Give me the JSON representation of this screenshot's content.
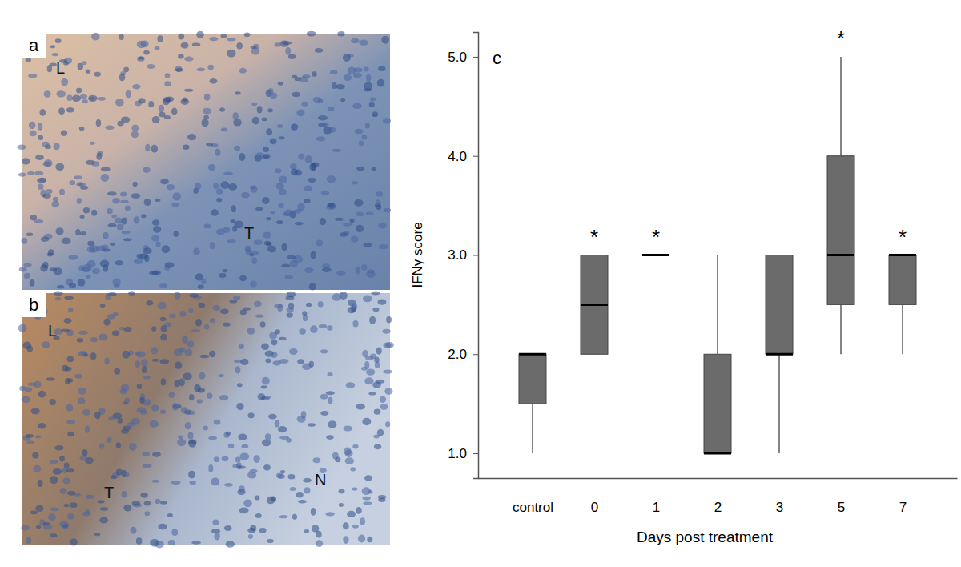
{
  "images": [
    {
      "label": "a",
      "annotations": [
        "L",
        "T"
      ]
    },
    {
      "label": "b",
      "annotations": [
        "L",
        "T",
        "N"
      ]
    }
  ],
  "chart_data": {
    "type": "box",
    "panel_label": "c",
    "y_label": "IFNγ score",
    "x_label": "Days post treatment",
    "categories": [
      "control",
      "0",
      "1",
      "2",
      "3",
      "5",
      "7"
    ],
    "min": [
      1,
      2,
      3,
      1,
      1,
      2,
      2
    ],
    "q1": [
      1.5,
      2,
      3,
      1,
      2,
      2.5,
      2.5
    ],
    "median": [
      2,
      2.5,
      3,
      1,
      2,
      3,
      3
    ],
    "q3": [
      2,
      3,
      3,
      2,
      3,
      4,
      3
    ],
    "max": [
      2,
      3,
      3,
      3,
      3,
      5,
      3
    ],
    "annotations": [
      null,
      "*",
      "*",
      null,
      null,
      "*",
      "*"
    ],
    "color": "#6b6b6b",
    "ylim": [
      0.75,
      5.25
    ],
    "yticks": [
      {
        "value": 1,
        "label": "1.0"
      },
      {
        "value": 2,
        "label": "2.0"
      },
      {
        "value": 3,
        "label": "3.0"
      },
      {
        "value": 4,
        "label": "4.0"
      },
      {
        "value": 5,
        "label": "5.0"
      }
    ]
  }
}
